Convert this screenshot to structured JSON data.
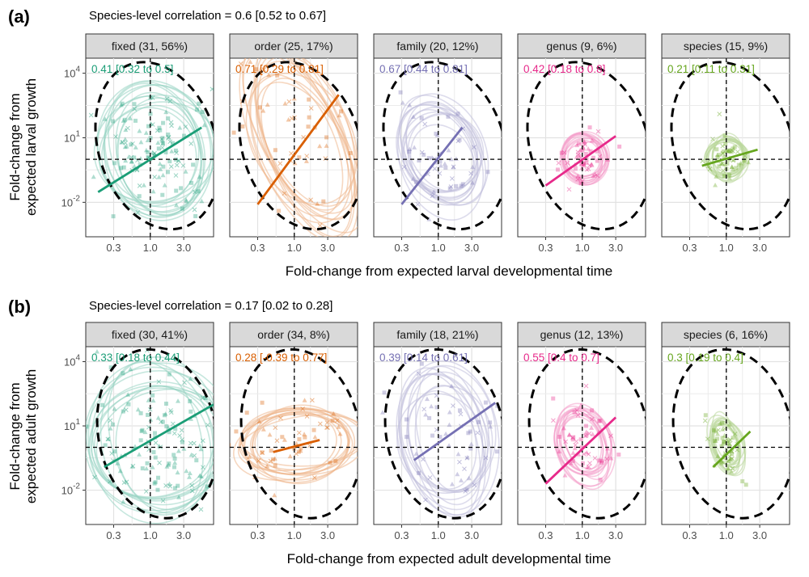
{
  "chart_data": [
    {
      "type": "scatter",
      "tag": "(a)",
      "subtitle": "Species-level correlation = 0.6 [0.52 to 0.67]",
      "xlabel": "Fold-change from expected larval developmental time",
      "ylabel_lines": [
        "Fold-change from",
        "expected larval growth"
      ],
      "x_scale": "log10",
      "y_scale": "log10",
      "xlim": [
        0.12,
        8.0
      ],
      "ylim": [
        0.00025,
        50000
      ],
      "x_ticks": [
        "0.3",
        "1.0",
        "3.0"
      ],
      "y_ticks": [
        {
          "value": 10000,
          "base": "10",
          "exp": "4"
        },
        {
          "value": 10,
          "base": "10",
          "exp": "1"
        },
        {
          "value": 0.01,
          "base": "10",
          "exp": "-2"
        }
      ],
      "reference_lines": {
        "x": 1.0,
        "y": 1.0
      },
      "panels": [
        {
          "strip": "fixed (31, 56%)",
          "color": "#1b9e77",
          "correlation": "0.41 [0.32 to 0.5]",
          "line": {
            "x": [
              0.18,
              5.4
            ],
            "y": [
              0.03,
              30
            ]
          },
          "ellipse_center": [
            1.2,
            2.5
          ],
          "ellipse_sd": [
            0.45,
            1.6
          ]
        },
        {
          "strip": "order (25, 17%)",
          "color": "#d95f02",
          "correlation": "0.71 [0.29 to 0.81]",
          "line": {
            "x": [
              0.3,
              4.3
            ],
            "y": [
              0.008,
              1000
            ]
          },
          "ellipse_center": [
            1.3,
            10
          ],
          "ellipse_sd": [
            0.4,
            2.4
          ]
        },
        {
          "strip": "family (20, 12%)",
          "color": "#7570b3",
          "correlation": "0.67 [0.44 to 0.81]",
          "line": {
            "x": [
              0.3,
              2.2
            ],
            "y": [
              0.008,
              30
            ]
          },
          "ellipse_center": [
            1.1,
            1.5
          ],
          "ellipse_sd": [
            0.3,
            1.4
          ]
        },
        {
          "strip": "genus (9, 6%)",
          "color": "#e7298a",
          "correlation": "0.42 [0.18 to 0.8]",
          "line": {
            "x": [
              0.3,
              3.0
            ],
            "y": [
              0.06,
              12
            ]
          },
          "ellipse_center": [
            1.05,
            1.2
          ],
          "ellipse_sd": [
            0.18,
            0.6
          ]
        },
        {
          "strip": "species (15, 9%)",
          "color": "#66a61e",
          "correlation": "0.21 [0.11 to 0.31]",
          "line": {
            "x": [
              0.45,
              2.8
            ],
            "y": [
              0.5,
              2.8
            ]
          },
          "ellipse_center": [
            1.0,
            1.1
          ],
          "ellipse_sd": [
            0.16,
            0.55
          ]
        }
      ]
    },
    {
      "type": "scatter",
      "tag": "(b)",
      "subtitle": "Species-level correlation = 0.17 [0.02 to 0.28]",
      "xlabel": "Fold-change from expected adult developmental time",
      "ylabel_lines": [
        "Fold-change from",
        "expected adult growth"
      ],
      "x_scale": "log10",
      "y_scale": "log10",
      "xlim": [
        0.12,
        8.0
      ],
      "ylim": [
        0.00025,
        50000
      ],
      "x_ticks": [
        "0.3",
        "1.0",
        "3.0"
      ],
      "y_ticks": [
        {
          "value": 10000,
          "base": "10",
          "exp": "4"
        },
        {
          "value": 10,
          "base": "10",
          "exp": "1"
        },
        {
          "value": 0.01,
          "base": "10",
          "exp": "-2"
        }
      ],
      "reference_lines": {
        "x": 1.0,
        "y": 1.0
      },
      "panels": [
        {
          "strip": "fixed (30, 41%)",
          "color": "#1b9e77",
          "correlation": "0.33 [0.18 to 0.44]",
          "line": {
            "x": [
              0.22,
              8.0
            ],
            "y": [
              0.12,
              100
            ]
          },
          "ellipse_center": [
            1.3,
            2.0
          ],
          "ellipse_sd": [
            0.5,
            1.9
          ]
        },
        {
          "strip": "order (34, 8%)",
          "color": "#d95f02",
          "correlation": "0.28 [-0.39 to 0.77]",
          "line": {
            "x": [
              0.5,
              2.3
            ],
            "y": [
              0.6,
              2.2
            ]
          },
          "ellipse_center": [
            1.1,
            1.8
          ],
          "ellipse_sd": [
            0.45,
            0.9
          ]
        },
        {
          "strip": "family (18, 21%)",
          "color": "#7570b3",
          "correlation": "0.39 [0.14 to 0.61]",
          "line": {
            "x": [
              0.45,
              6.5
            ],
            "y": [
              0.25,
              120
            ]
          },
          "ellipse_center": [
            1.3,
            3.0
          ],
          "ellipse_sd": [
            0.35,
            1.8
          ]
        },
        {
          "strip": "genus (12, 13%)",
          "color": "#e7298a",
          "correlation": "0.55 [0.4 to 0.7]",
          "line": {
            "x": [
              0.3,
              3.0
            ],
            "y": [
              0.02,
              25
            ]
          },
          "ellipse_center": [
            1.05,
            1.5
          ],
          "ellipse_sd": [
            0.2,
            1.0
          ]
        },
        {
          "strip": "species (6, 16%)",
          "color": "#66a61e",
          "correlation": "0.3 [0.19 to 0.4]",
          "line": {
            "x": [
              0.65,
              2.2
            ],
            "y": [
              0.12,
              5.5
            ]
          },
          "ellipse_center": [
            1.0,
            1.2
          ],
          "ellipse_sd": [
            0.12,
            0.75
          ]
        }
      ]
    }
  ]
}
